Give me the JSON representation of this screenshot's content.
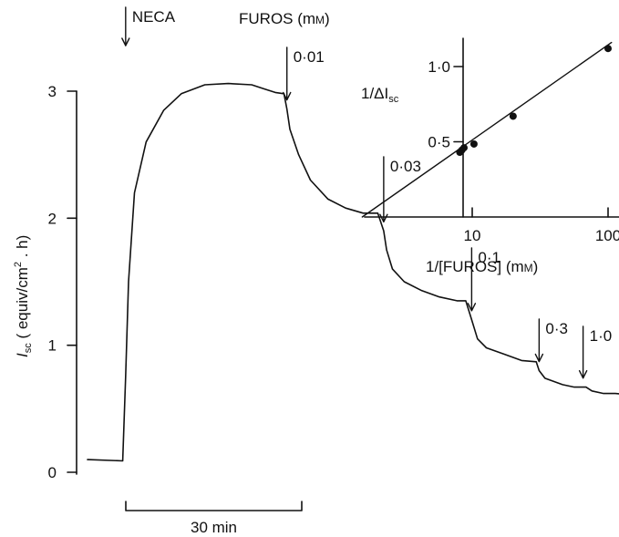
{
  "chart_data": [
    {
      "type": "line",
      "title": "",
      "xlabel": "",
      "ylabel": "I",
      "ylabel_subscript": "sc",
      "ylabel_rest": " ( equiv/cm",
      "ylabel_sup": "2",
      "ylabel_end": " . h)",
      "ylim": [
        0,
        3
      ],
      "y_ticks": [
        "0",
        "1",
        "2",
        "3"
      ],
      "x_unit": "min",
      "scale_bar": {
        "label": "30 min",
        "minutes": 30
      },
      "series": [
        {
          "x": [
            0,
            6,
            6.5,
            7,
            8,
            10,
            13,
            16,
            20,
            24,
            28,
            30,
            32,
            33.5,
            34,
            34.5,
            36,
            38,
            41,
            44,
            47,
            49.5,
            50.5,
            51,
            52,
            54,
            57,
            60,
            63,
            64.5,
            65.5,
            66.5,
            68,
            71,
            74,
            76.5,
            77,
            78,
            81,
            83,
            85,
            86,
            88,
            90,
            93
          ],
          "y": [
            0.1,
            0.09,
            0.75,
            1.5,
            2.2,
            2.6,
            2.85,
            2.98,
            3.05,
            3.06,
            3.05,
            3.02,
            2.99,
            2.98,
            2.86,
            2.7,
            2.5,
            2.3,
            2.15,
            2.08,
            2.04,
            2.04,
            1.9,
            1.75,
            1.6,
            1.5,
            1.43,
            1.38,
            1.35,
            1.35,
            1.2,
            1.05,
            0.98,
            0.93,
            0.88,
            0.87,
            0.8,
            0.74,
            0.69,
            0.67,
            0.67,
            0.64,
            0.62,
            0.62,
            0.61
          ]
        }
      ],
      "annotations": [
        {
          "label": "NECA",
          "x": 6.5
        },
        {
          "label": "0·01",
          "x": 34
        },
        {
          "label": "0·03",
          "x": 50.5
        },
        {
          "label": "0·1",
          "x": 65.5
        },
        {
          "label": "0·3",
          "x": 77
        },
        {
          "label": "1·0",
          "x": 84.5
        }
      ],
      "annotation_header": "FUROS (mM)",
      "annotation_header_main": "FUROS (m",
      "annotation_header_unit": "M",
      "annotation_header_end": ")"
    },
    {
      "type": "scatter",
      "title": "",
      "xlabel": "1/[FUROS] (mM)",
      "xlabel_main": "1/[FUROS] (m",
      "xlabel_unit": "M",
      "xlabel_end": ")",
      "ylabel": "1/ΔI",
      "ylabel_subscript": "sc",
      "x_scale": "log",
      "x_ticks": [
        "10",
        "100"
      ],
      "y_ticks": [
        "0·5",
        "1·0"
      ],
      "x_ticks_values": [
        10,
        100
      ],
      "y_ticks_values": [
        0.5,
        1.0
      ],
      "x": [
        8.1,
        8.4,
        8.7,
        10.3,
        20,
        100
      ],
      "y": [
        0.43,
        0.445,
        0.46,
        0.485,
        0.67,
        1.12
      ],
      "fit_line": {
        "x": [
          1.55,
          106
        ],
        "y": [
          0.0,
          1.16
        ]
      }
    }
  ]
}
